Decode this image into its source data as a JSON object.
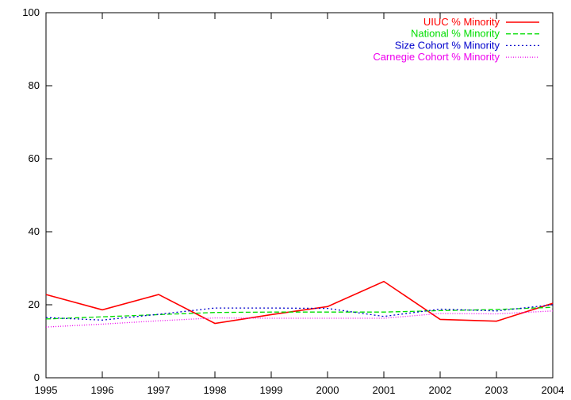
{
  "chart_data": {
    "type": "line",
    "title": "",
    "xlabel": "",
    "ylabel": "",
    "xlim": [
      1995,
      2004
    ],
    "ylim": [
      0,
      100
    ],
    "x": [
      1995,
      1996,
      1997,
      1998,
      1999,
      2000,
      2001,
      2002,
      2003,
      2004
    ],
    "x_ticks": [
      "1995",
      "1996",
      "1997",
      "1998",
      "1999",
      "2000",
      "2001",
      "2002",
      "2003",
      "2004"
    ],
    "y_ticks": [
      "0",
      "20",
      "40",
      "60",
      "80",
      "100"
    ],
    "grid": false,
    "legend_position": "top-right",
    "series": [
      {
        "name": "UIUC % Minority",
        "color": "#ff0000",
        "style": "solid",
        "values": [
          22.8,
          18.6,
          22.8,
          14.9,
          17.3,
          19.5,
          26.4,
          16.0,
          15.5,
          20.4
        ]
      },
      {
        "name": "National % Minority",
        "color": "#00dd00",
        "style": "dashed",
        "values": [
          16.1,
          16.7,
          17.3,
          17.9,
          18.0,
          18.0,
          18.0,
          18.4,
          18.7,
          19.3
        ]
      },
      {
        "name": "Size Cohort % Minority",
        "color": "#0000cc",
        "style": "dotted",
        "values": [
          16.5,
          15.8,
          17.4,
          19.1,
          19.1,
          19.0,
          16.8,
          18.8,
          18.3,
          20.0
        ]
      },
      {
        "name": "Carnegie Cohort % Minority",
        "color": "#ee00ee",
        "style": "finedotted",
        "values": [
          13.9,
          14.7,
          15.6,
          16.4,
          16.3,
          16.3,
          16.3,
          17.6,
          17.5,
          18.3
        ]
      }
    ]
  }
}
